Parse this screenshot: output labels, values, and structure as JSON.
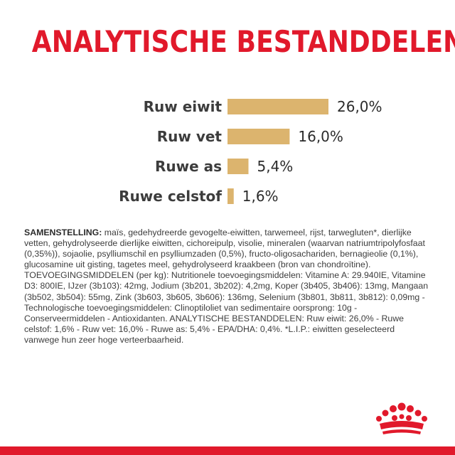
{
  "header": {
    "title": "ANALYTISCHE BESTANDDELEN"
  },
  "chart_data": {
    "type": "bar",
    "orientation": "horizontal",
    "categories": [
      "Ruw eiwit",
      "Ruw vet",
      "Ruwe as",
      "Ruwe celstof"
    ],
    "values": [
      26.0,
      16.0,
      5.4,
      1.6
    ],
    "value_labels": [
      "26,0%",
      "16,0%",
      "5,4%",
      "1,6%"
    ],
    "unit": "%",
    "xlim": [
      0,
      26.0
    ],
    "grid": false,
    "bar_color": "#dcb46e",
    "title": "",
    "xlabel": "",
    "ylabel": ""
  },
  "composition": {
    "heading": "SAMENSTELLING:",
    "text": " maïs, gedehydreerde gevogelte-eiwitten, tarwemeel, rijst, tarwegluten*, dierlijke vetten, gehydrolyseerde dierlijke eiwitten, cichoreipulp, visolie, mineralen (waarvan natriumtripolyfosfaat (0,35%)), sojaolie, psylliumschil en psylliumzaden (0,5%), fructo-oligosachariden, bernagieolie (0,1%), glucosamine uit gisting, tagetes meel, gehydrolyseerd kraakbeen (bron van chondroïtine). TOEVOEGINGSMIDDELEN (per  kg): Nutritionele toevoegingsmiddelen: Vitamine A: 29.940IE, Vitamine D3: 800IE, IJzer (3b103): 42mg, Jodium (3b201, 3b202): 4,2mg, Koper (3b405, 3b406): 13mg, Mangaan (3b502, 3b504): 55mg, Zink (3b603, 3b605, 3b606): 136mg, Selenium (3b801, 3b811, 3b812): 0,09mg - Technologische toevoegingsmiddelen: Clinoptiloliet van sedimentaire oorsprong: 10g - Conserveermiddelen - Antioxidanten. ANALYTISCHE BESTANDDELEN: Ruw eiwit: 26,0% - Ruwe celstof: 1,6% - Ruw vet: 16,0% - Ruwe as: 5,4% - EPA/DHA: 0,4%. *L.I.P.: eiwitten geselecteerd vanwege hun zeer hoge verteerbaarheid."
  },
  "colors": {
    "brand_red": "#e1192b",
    "bar_gold": "#dcb46e",
    "text_dark": "#3c3c3c"
  },
  "logo": {
    "icon": "crown-icon"
  }
}
